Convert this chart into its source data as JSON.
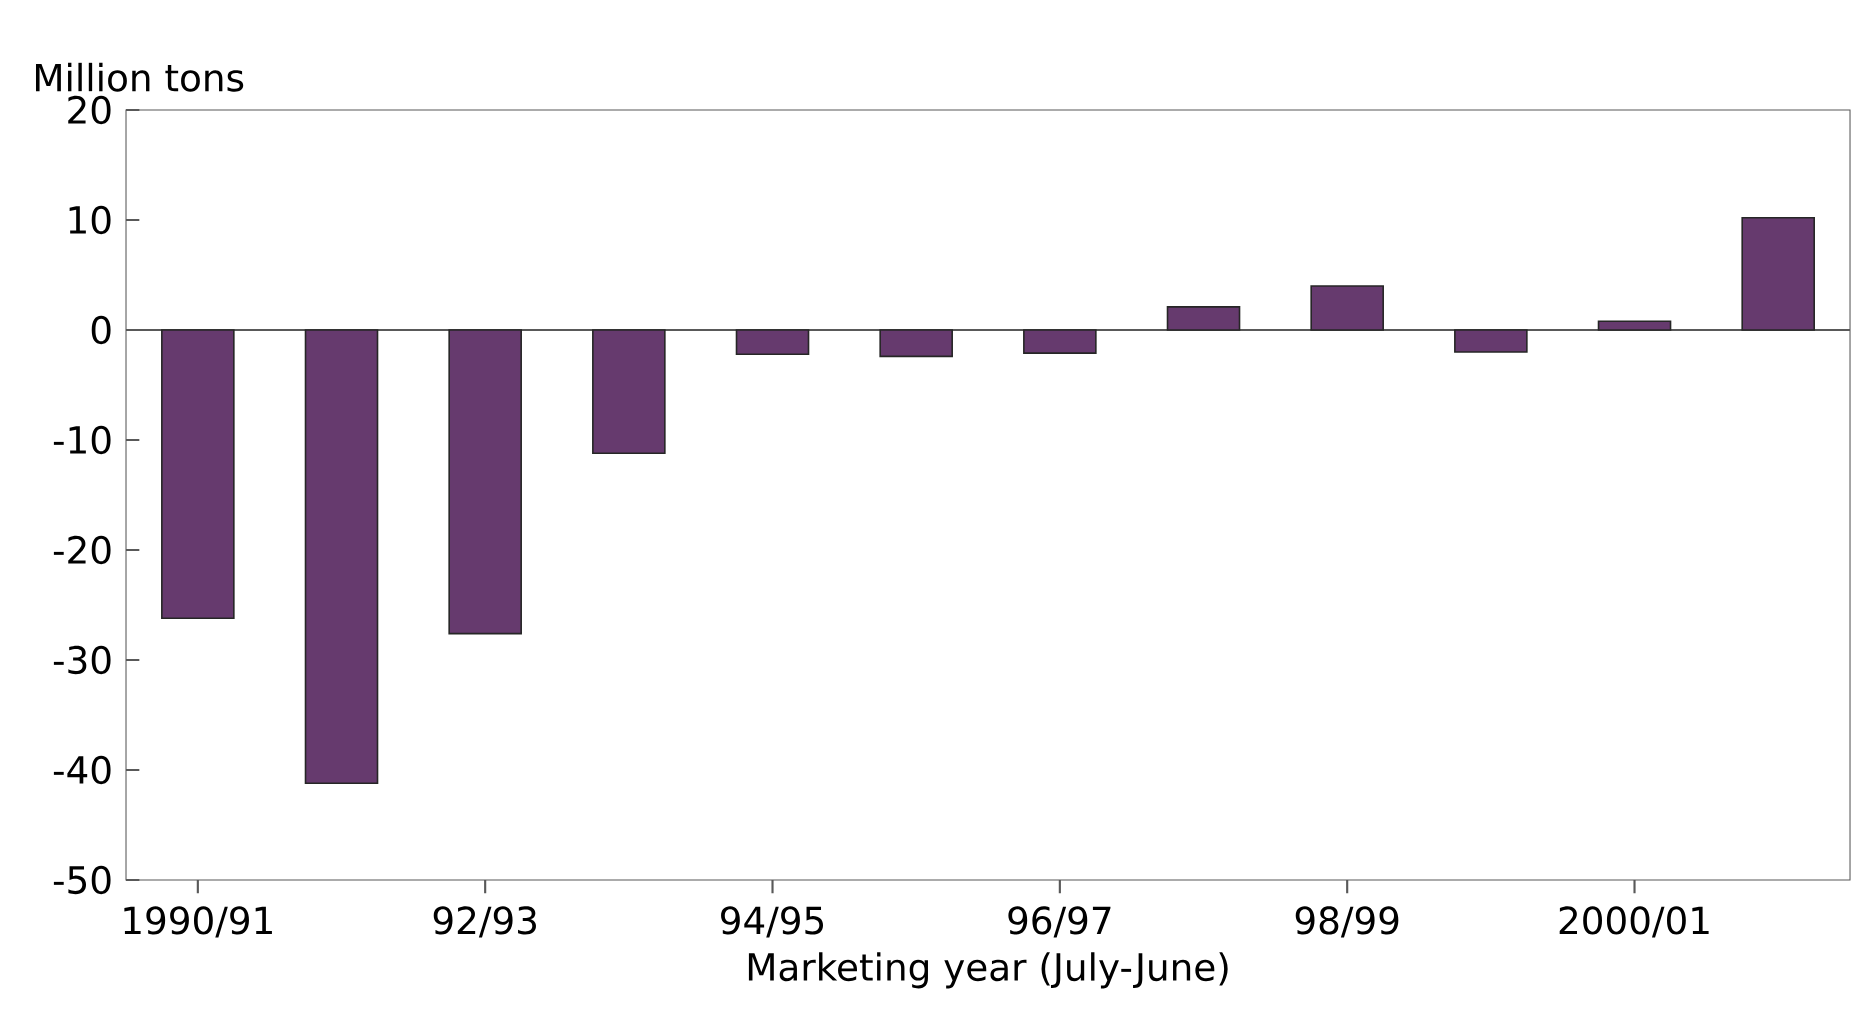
{
  "chart_data": {
    "type": "bar",
    "ylabel": "Million tons",
    "xlabel": "Marketing year (July-June)",
    "categories": [
      "1990/91",
      null,
      "92/93",
      null,
      "94/95",
      null,
      "96/97",
      null,
      "98/99",
      null,
      "2000/01",
      null
    ],
    "values": [
      -26.2,
      -41.2,
      -27.6,
      -11.2,
      -2.2,
      -2.4,
      -2.1,
      2.1,
      4.0,
      -2.0,
      0.8,
      10.2
    ],
    "color": "#663a6e",
    "ylim": [
      -50,
      20
    ],
    "yticks": [
      -50,
      -40,
      -30,
      -20,
      -10,
      0,
      10,
      20
    ]
  }
}
